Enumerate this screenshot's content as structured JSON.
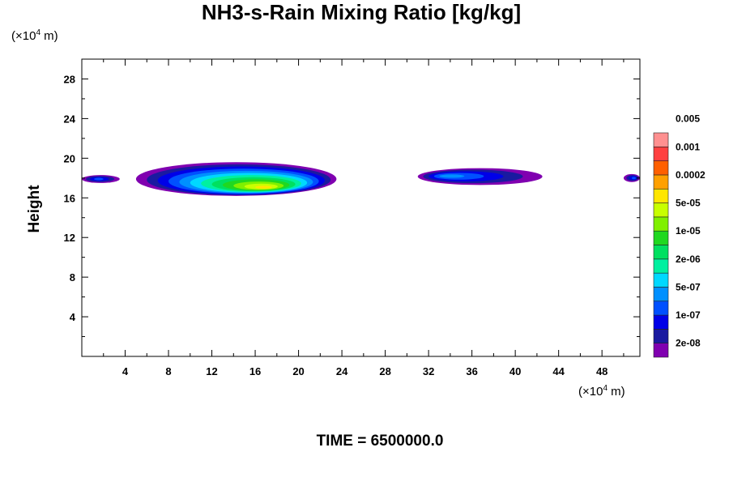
{
  "chart_data": {
    "type": "heatmap",
    "title": "NH3-s-Rain Mixing Ratio [kg/kg]",
    "ylabel": "Height",
    "xlabel": "",
    "x_unit": "(×10",
    "x_unit_exp": "4",
    "x_unit_suffix": " m)",
    "y_unit": "(×10",
    "y_unit_exp": "4",
    "y_unit_suffix": " m)",
    "xlim": [
      0,
      51.5
    ],
    "ylim": [
      0,
      30
    ],
    "x_ticks": [
      4,
      8,
      12,
      16,
      20,
      24,
      28,
      32,
      36,
      40,
      44,
      48
    ],
    "y_ticks": [
      4,
      8,
      12,
      16,
      20,
      24,
      28
    ],
    "grid": false,
    "legend_placement": "right",
    "colorbar": {
      "colors": [
        "#8000b0",
        "#1a1aa0",
        "#0000e8",
        "#0050ff",
        "#0090ff",
        "#00d8ff",
        "#00f0a0",
        "#00e060",
        "#20d820",
        "#80f000",
        "#c8ff00",
        "#ffe600",
        "#ffa000",
        "#ff6000",
        "#ff4040",
        "#ff9090"
      ],
      "labels": [
        "2e-08",
        "1e-07",
        "5e-07",
        "2e-06",
        "1e-05",
        "5e-05",
        "0.0002",
        "0.001",
        "0.005"
      ]
    },
    "regions": [
      {
        "x_range": [
          5.0,
          23.5
        ],
        "y_range": [
          16.2,
          19.6
        ],
        "max_level": 11,
        "peak_x": 17.0,
        "peak_y": 17.0
      },
      {
        "x_range": [
          0.0,
          3.5
        ],
        "y_range": [
          17.5,
          18.3
        ],
        "max_level": 3,
        "peak_x": 1.5,
        "peak_y": 17.9
      },
      {
        "x_range": [
          31.0,
          42.5
        ],
        "y_range": [
          17.3,
          19.0
        ],
        "max_level": 4,
        "peak_x": 33.5,
        "peak_y": 18.2
      },
      {
        "x_range": [
          50.0,
          51.5
        ],
        "y_range": [
          17.6,
          18.4
        ],
        "max_level": 3,
        "peak_x": 51.0,
        "peak_y": 18.0
      }
    ]
  },
  "footer": {
    "time_label": "TIME = 6500000.0"
  }
}
